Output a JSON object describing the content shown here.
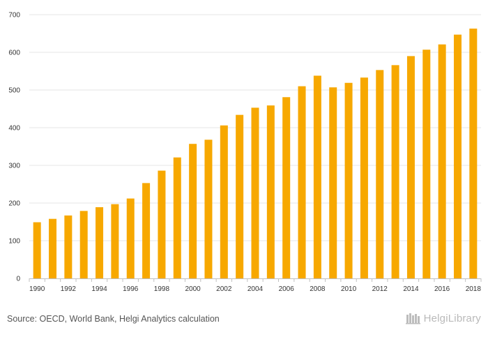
{
  "chart_data": {
    "type": "bar",
    "categories": [
      "1990",
      "1991",
      "1992",
      "1993",
      "1994",
      "1995",
      "1996",
      "1997",
      "1998",
      "1999",
      "2000",
      "2001",
      "2002",
      "2003",
      "2004",
      "2005",
      "2006",
      "2007",
      "2008",
      "2009",
      "2010",
      "2011",
      "2012",
      "2013",
      "2014",
      "2015",
      "2016",
      "2017",
      "2018"
    ],
    "values": [
      149,
      158,
      167,
      179,
      189,
      197,
      212,
      253,
      286,
      321,
      357,
      368,
      406,
      434,
      453,
      459,
      481,
      510,
      538,
      507,
      519,
      533,
      553,
      566,
      590,
      607,
      621,
      647,
      663
    ],
    "x_tick_labels": [
      "1990",
      "1992",
      "1994",
      "1996",
      "1998",
      "2000",
      "2002",
      "2004",
      "2006",
      "2008",
      "2010",
      "2012",
      "2014",
      "2016",
      "2018"
    ],
    "y_ticks": [
      "0",
      "100",
      "200",
      "300",
      "400",
      "500",
      "600",
      "700"
    ],
    "ylim": [
      0,
      700
    ],
    "grid": true,
    "bar_color": "#f7a800",
    "title": "",
    "xlabel": "",
    "ylabel": ""
  },
  "footer": {
    "source": "Source: OECD, World Bank, Helgi Analytics calculation",
    "brand": "HelgiLibrary"
  }
}
